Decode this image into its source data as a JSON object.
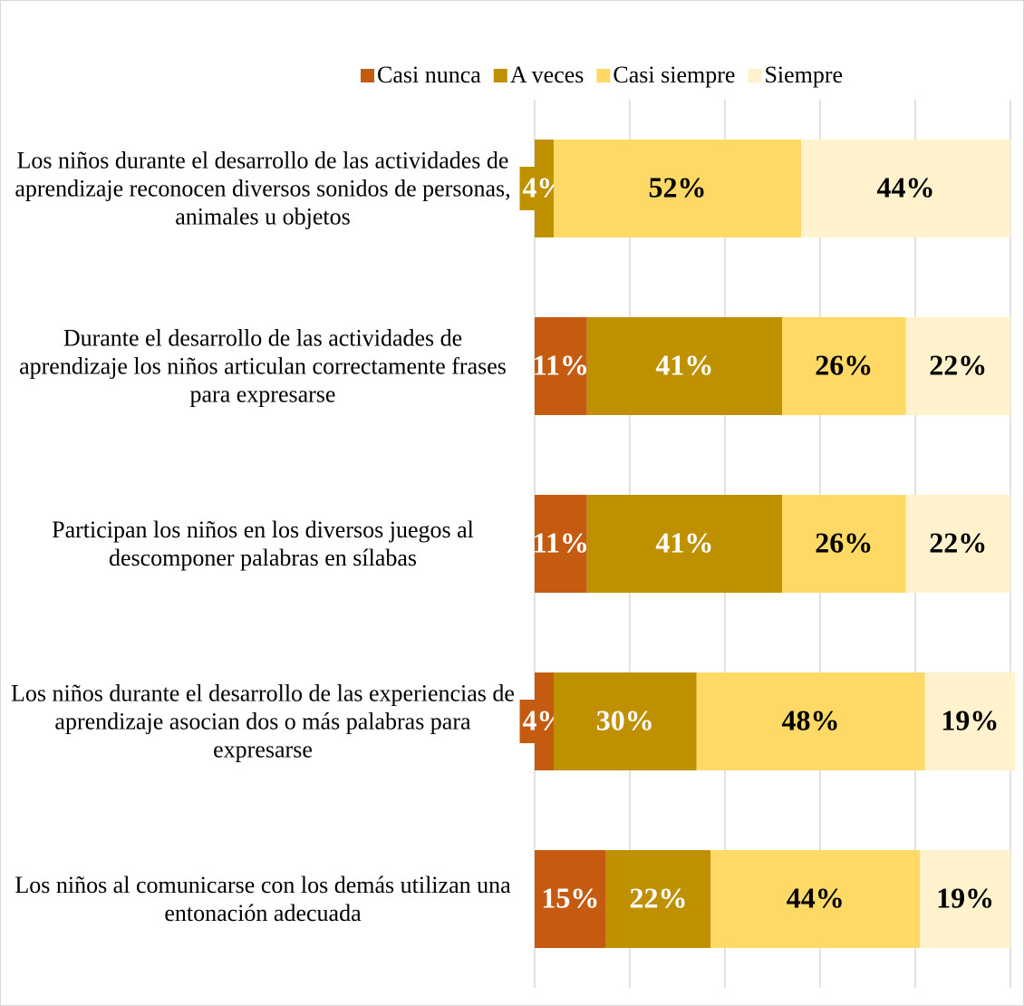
{
  "chart_data": {
    "type": "stacked_bar_horizontal",
    "categories": [
      "Los niños durante el desarrollo de las actividades de aprendizaje reconocen diversos sonidos de personas, animales u objetos",
      "Durante el desarrollo de las actividades de aprendizaje los niños articulan correctamente frases para expresarse",
      "Participan los niños en los diversos juegos al descomponer palabras en sílabas",
      "Los niños durante el desarrollo de las experiencias de aprendizaje asocian dos o más palabras para expresarse",
      "Los niños al comunicarse con los demás utilizan una entonación adecuada"
    ],
    "series": [
      {
        "name": "Casi nunca",
        "color": "#c55a11",
        "label_color": "#ffffff",
        "values": [
          0,
          11,
          11,
          4,
          15
        ],
        "value_labels": [
          null,
          "11%",
          "11%",
          "4%",
          "15%"
        ]
      },
      {
        "name": "A veces",
        "color": "#bf9000",
        "label_color": "#ffffff",
        "values": [
          4,
          41,
          41,
          30,
          22
        ],
        "value_labels": [
          "4%",
          "41%",
          "41%",
          "30%",
          "22%"
        ]
      },
      {
        "name": "Casi siempre",
        "color": "#ffd966",
        "label_color": "#000000",
        "values": [
          52,
          26,
          26,
          48,
          44
        ],
        "value_labels": [
          "52%",
          "26%",
          "26%",
          "48%",
          "44%"
        ]
      },
      {
        "name": "Siempre",
        "color": "#fff2cc",
        "label_color": "#000000",
        "values": [
          44,
          22,
          22,
          19,
          19
        ],
        "value_labels": [
          "44%",
          "22%",
          "22%",
          "19%",
          "19%"
        ]
      }
    ],
    "xlim": [
      0,
      100
    ],
    "xticks": [
      0,
      20,
      40,
      60,
      80,
      100
    ],
    "grid": true,
    "legend": "top"
  }
}
